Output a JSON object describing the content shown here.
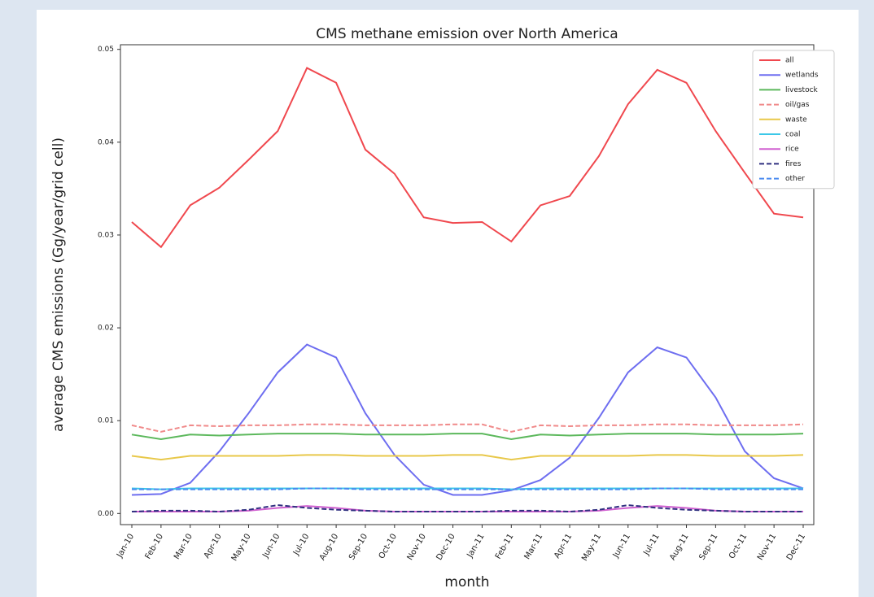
{
  "chart_data": {
    "type": "line",
    "title": "CMS methane emission over North America",
    "xlabel": "month",
    "ylabel": "average CMS emissions (Gg/year/grid cell)",
    "categories": [
      "Jan-10",
      "Feb-10",
      "Mar-10",
      "Apr-10",
      "May-10",
      "Jun-10",
      "Jul-10",
      "Aug-10",
      "Sep-10",
      "Oct-10",
      "Nov-10",
      "Dec-10",
      "Jan-11",
      "Feb-11",
      "Mar-11",
      "Apr-11",
      "May-11",
      "Jun-11",
      "Jul-11",
      "Aug-11",
      "Sep-11",
      "Oct-11",
      "Nov-11",
      "Dec-11"
    ],
    "ylim": [
      -0.0012,
      0.0505
    ],
    "yticks": [
      {
        "value": 0,
        "label": "0.00"
      },
      0.01,
      0.02,
      0.03,
      0.04,
      0.05
    ],
    "legend": "upper right",
    "series": [
      {
        "name": "all",
        "color": "#f0484e",
        "dash": false,
        "values": [
          0.0314,
          0.0287,
          0.0332,
          0.0351,
          0.0381,
          0.0412,
          0.048,
          0.0464,
          0.0392,
          0.0366,
          0.0319,
          0.0313,
          0.0314,
          0.0293,
          0.0332,
          0.0342,
          0.0385,
          0.0441,
          0.0478,
          0.0464,
          0.0412,
          0.0367,
          0.0323,
          0.0319
        ]
      },
      {
        "name": "wetlands",
        "color": "#6e6ef0",
        "dash": false,
        "values": [
          0.002,
          0.0021,
          0.0033,
          0.0067,
          0.0108,
          0.0152,
          0.0182,
          0.0168,
          0.0108,
          0.0063,
          0.0031,
          0.002,
          0.002,
          0.0025,
          0.0036,
          0.006,
          0.0103,
          0.0152,
          0.0179,
          0.0168,
          0.0125,
          0.0067,
          0.0038,
          0.0027
        ]
      },
      {
        "name": "livestock",
        "color": "#5cb85c",
        "dash": false,
        "values": [
          0.0085,
          0.008,
          0.0085,
          0.0084,
          0.0085,
          0.0086,
          0.0086,
          0.0086,
          0.0085,
          0.0085,
          0.0085,
          0.0086,
          0.0086,
          0.008,
          0.0085,
          0.0084,
          0.0085,
          0.0086,
          0.0086,
          0.0086,
          0.0085,
          0.0085,
          0.0085,
          0.0086
        ]
      },
      {
        "name": "oil/gas",
        "color": "#f08a8a",
        "dash": true,
        "values": [
          0.0095,
          0.0088,
          0.0095,
          0.0094,
          0.0095,
          0.0095,
          0.0096,
          0.0096,
          0.0095,
          0.0095,
          0.0095,
          0.0096,
          0.0096,
          0.0088,
          0.0095,
          0.0094,
          0.0095,
          0.0095,
          0.0096,
          0.0096,
          0.0095,
          0.0095,
          0.0095,
          0.0096
        ]
      },
      {
        "name": "waste",
        "color": "#e8c84a",
        "dash": false,
        "values": [
          0.0062,
          0.0058,
          0.0062,
          0.0062,
          0.0062,
          0.0062,
          0.0063,
          0.0063,
          0.0062,
          0.0062,
          0.0062,
          0.0063,
          0.0063,
          0.0058,
          0.0062,
          0.0062,
          0.0062,
          0.0062,
          0.0063,
          0.0063,
          0.0062,
          0.0062,
          0.0062,
          0.0063
        ]
      },
      {
        "name": "coal",
        "color": "#3cc8e8",
        "dash": false,
        "values": [
          0.0027,
          0.0026,
          0.0027,
          0.0027,
          0.0027,
          0.0027,
          0.0027,
          0.0027,
          0.0027,
          0.0027,
          0.0027,
          0.0027,
          0.0027,
          0.0026,
          0.0027,
          0.0027,
          0.0027,
          0.0027,
          0.0027,
          0.0027,
          0.0027,
          0.0027,
          0.0027,
          0.0027
        ]
      },
      {
        "name": "rice",
        "color": "#d060d0",
        "dash": false,
        "values": [
          0.0002,
          0.0002,
          0.0002,
          0.0002,
          0.0003,
          0.0006,
          0.0008,
          0.0006,
          0.0003,
          0.0002,
          0.0002,
          0.0002,
          0.0002,
          0.0002,
          0.0002,
          0.0002,
          0.0003,
          0.0006,
          0.0008,
          0.0006,
          0.0003,
          0.0002,
          0.0002,
          0.0002
        ]
      },
      {
        "name": "fires",
        "color": "#303080",
        "dash": true,
        "values": [
          0.0002,
          0.0003,
          0.0003,
          0.0002,
          0.0004,
          0.0009,
          0.0006,
          0.0004,
          0.0003,
          0.0002,
          0.0002,
          0.0002,
          0.0002,
          0.0003,
          0.0003,
          0.0002,
          0.0004,
          0.0009,
          0.0006,
          0.0004,
          0.0003,
          0.0002,
          0.0002,
          0.0002
        ]
      },
      {
        "name": "other",
        "color": "#4a8af0",
        "dash": true,
        "values": [
          0.0026,
          0.0026,
          0.0026,
          0.0026,
          0.0026,
          0.0026,
          0.0027,
          0.0027,
          0.0026,
          0.0026,
          0.0026,
          0.0026,
          0.0026,
          0.0026,
          0.0026,
          0.0026,
          0.0026,
          0.0026,
          0.0027,
          0.0027,
          0.0026,
          0.0026,
          0.0026,
          0.0026
        ]
      }
    ]
  }
}
